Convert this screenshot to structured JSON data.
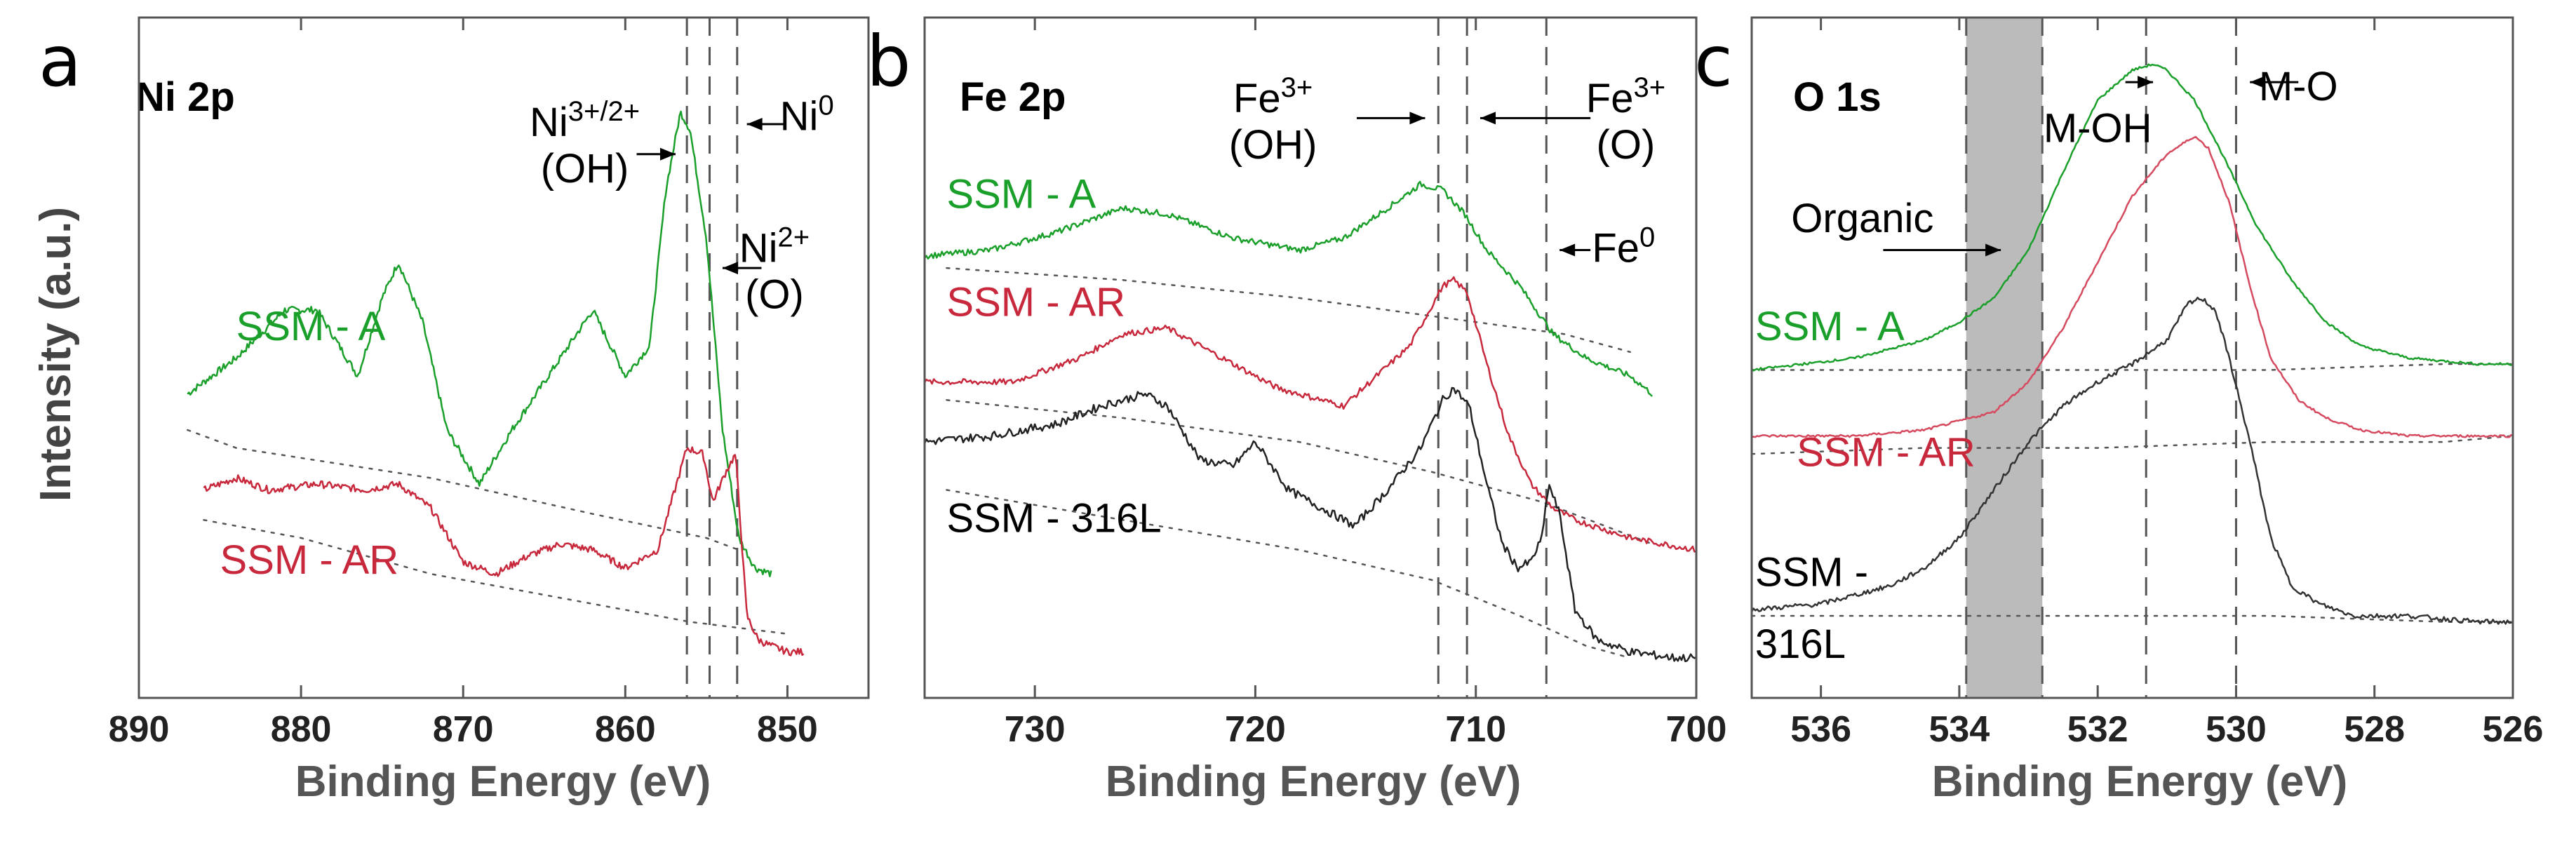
{
  "figure": {
    "ylabel": "Intensity (a.u.)"
  },
  "chart_data": [
    {
      "type": "line",
      "panel": "a",
      "title": "Ni 2p",
      "xlabel": "Binding Energy (eV)",
      "ylabel": "Intensity (a.u.)",
      "xlim": [
        890,
        845
      ],
      "ylim": [
        0,
        1
      ],
      "x_reversed": true,
      "xticks": [
        890,
        880,
        870,
        860,
        850
      ],
      "xtick_labels": [
        "890",
        "880",
        "870",
        "860",
        "850"
      ],
      "grid": false,
      "series": [
        {
          "name": "SSM - A",
          "color": "#1aa02a",
          "noise": 0.006,
          "x": [
            887,
            884,
            881,
            879,
            876.5,
            875,
            874,
            872.5,
            871,
            869,
            867,
            864,
            862,
            860,
            858.5,
            857.5,
            856.6,
            856,
            855,
            854,
            853,
            852,
            851
          ],
          "y": [
            0.46,
            0.52,
            0.6,
            0.6,
            0.49,
            0.62,
            0.68,
            0.58,
            0.4,
            0.31,
            0.4,
            0.52,
            0.6,
            0.49,
            0.54,
            0.8,
            0.93,
            0.9,
            0.72,
            0.4,
            0.22,
            0.17,
            0.16
          ]
        },
        {
          "name": "SSM - AR",
          "color": "#c8283c",
          "noise": 0.006,
          "x": [
            886,
            884,
            882,
            879,
            876,
            874,
            872,
            870,
            868,
            866,
            864,
            862,
            860,
            858,
            856.2,
            855.2,
            854.6,
            853.8,
            853.2,
            852.5,
            851.8,
            851,
            850,
            849
          ],
          "y": [
            0.3,
            0.32,
            0.3,
            0.31,
            0.3,
            0.31,
            0.27,
            0.18,
            0.16,
            0.19,
            0.21,
            0.2,
            0.17,
            0.2,
            0.37,
            0.36,
            0.28,
            0.33,
            0.36,
            0.09,
            0.05,
            0.04,
            0.03,
            0.03
          ]
        }
      ],
      "baselines": [
        {
          "x": [
            887,
            884,
            872,
            862,
            855,
            853
          ],
          "y": [
            0.4,
            0.37,
            0.32,
            0.26,
            0.22,
            0.2
          ]
        },
        {
          "x": [
            886,
            880,
            872,
            864,
            856,
            850
          ],
          "y": [
            0.25,
            0.22,
            0.16,
            0.12,
            0.08,
            0.06
          ]
        }
      ],
      "series_labels": [
        {
          "text": "SSM - A",
          "color": "#1aa02a",
          "x": 884,
          "y": 0.55
        },
        {
          "text": "SSM - AR",
          "color": "#c8283c",
          "x": 885,
          "y": 0.16
        }
      ],
      "vlines": [
        856.2,
        854.8,
        853.1
      ],
      "annotations": [
        {
          "base": "Ni",
          "sup": "3+/2+",
          "line2": "(OH)",
          "label_x": 862.5,
          "label_y": 0.89,
          "arrow_from_x": 859.3,
          "arrow_to_x": 856.9,
          "arrow_y": 0.86
        },
        {
          "base": "Ni",
          "sup": "2+",
          "line2": "(O)",
          "label_x": 850.8,
          "label_y": 0.68,
          "arrow_from_x": 851.6,
          "arrow_to_x": 854.0,
          "arrow_y": 0.67
        },
        {
          "base": "Ni",
          "sup": "0",
          "line2": "",
          "label_x": 848.8,
          "label_y": 0.9,
          "arrow_from_x": 850.1,
          "arrow_to_x": 852.5,
          "arrow_y": 0.91
        }
      ]
    },
    {
      "type": "line",
      "panel": "b",
      "title": "Fe 2p",
      "xlabel": "Binding Energy (eV)",
      "ylabel": "Intensity (a.u.)",
      "xlim": [
        735,
        700
      ],
      "ylim": [
        0,
        1
      ],
      "x_reversed": true,
      "xticks": [
        730,
        720,
        710,
        700
      ],
      "xtick_labels": [
        "730",
        "720",
        "710",
        "700"
      ],
      "grid": false,
      "series": [
        {
          "name": "SSM - A",
          "color": "#1aa02a",
          "noise": 0.005,
          "x": [
            735,
            732,
            729,
            726,
            724,
            721,
            718,
            716,
            714,
            712.5,
            711.5,
            710.5,
            709.5,
            708,
            706.5,
            705,
            703,
            702
          ],
          "y": [
            0.69,
            0.7,
            0.73,
            0.77,
            0.76,
            0.72,
            0.7,
            0.72,
            0.77,
            0.81,
            0.8,
            0.76,
            0.7,
            0.64,
            0.56,
            0.52,
            0.49,
            0.46
          ]
        },
        {
          "name": "SSM - AR",
          "color": "#c8283c",
          "noise": 0.005,
          "x": [
            735,
            731,
            728,
            726,
            724,
            722,
            719,
            716,
            713,
            711.5,
            711,
            710.4,
            709.5,
            708.5,
            707.5,
            706.5,
            705.5,
            703,
            700
          ],
          "y": [
            0.48,
            0.48,
            0.52,
            0.56,
            0.57,
            0.53,
            0.47,
            0.44,
            0.54,
            0.64,
            0.65,
            0.63,
            0.51,
            0.39,
            0.31,
            0.27,
            0.25,
            0.22,
            0.2
          ]
        },
        {
          "name": "SSM - 316L",
          "color": "#222222",
          "noise": 0.007,
          "x": [
            735,
            732,
            729,
            727,
            725,
            724,
            722.5,
            721,
            720,
            718.5,
            717,
            715.5,
            714,
            712.5,
            711.5,
            711,
            710.3,
            709.5,
            708.8,
            708.1,
            707.5,
            707,
            706.7,
            706.2,
            705.5,
            704.5,
            703,
            701,
            700
          ],
          "y": [
            0.38,
            0.39,
            0.41,
            0.44,
            0.46,
            0.44,
            0.35,
            0.34,
            0.38,
            0.3,
            0.27,
            0.24,
            0.3,
            0.37,
            0.45,
            0.47,
            0.44,
            0.31,
            0.21,
            0.17,
            0.18,
            0.22,
            0.31,
            0.26,
            0.1,
            0.05,
            0.03,
            0.02,
            0.02
          ]
        }
      ],
      "baselines": [
        {
          "x": [
            734,
            726,
            718,
            712,
            706,
            703
          ],
          "y": [
            0.67,
            0.65,
            0.62,
            0.59,
            0.56,
            0.53
          ]
        },
        {
          "x": [
            734,
            726,
            718,
            712,
            707,
            702
          ],
          "y": [
            0.45,
            0.42,
            0.38,
            0.33,
            0.28,
            0.21
          ]
        },
        {
          "x": [
            734,
            726,
            718,
            712,
            708,
            705,
            703
          ],
          "y": [
            0.3,
            0.25,
            0.2,
            0.15,
            0.09,
            0.04,
            0.02
          ]
        }
      ],
      "series_labels": [
        {
          "text": "SSM - A",
          "color": "#1aa02a",
          "x": 734,
          "y": 0.77
        },
        {
          "text": "SSM - AR",
          "color": "#c8283c",
          "x": 734,
          "y": 0.59
        },
        {
          "text": "SSM - 316L",
          "color": "#000000",
          "x": 734,
          "y": 0.23
        }
      ],
      "vlines": [
        711.7,
        710.4,
        706.8
      ],
      "annotations": [
        {
          "base": "Fe",
          "sup": "3+",
          "line2": "(OH)",
          "label_x": 719.2,
          "label_y": 0.93,
          "arrow_from_x": 715.4,
          "arrow_to_x": 712.3,
          "arrow_y": 0.92
        },
        {
          "base": "Fe",
          "sup": "3+",
          "line2": "(O)",
          "label_x": 703.2,
          "label_y": 0.93,
          "arrow_from_x": 704.8,
          "arrow_to_x": 709.8,
          "arrow_y": 0.92
        },
        {
          "base": "Fe",
          "sup": "0",
          "line2": "",
          "label_x": 703.3,
          "label_y": 0.68,
          "arrow_from_x": 704.8,
          "arrow_to_x": 706.2,
          "arrow_y": 0.7
        }
      ]
    },
    {
      "type": "line",
      "panel": "c",
      "title": "O 1s",
      "xlabel": "Binding Energy (eV)",
      "ylabel": "Intensity (a.u.)",
      "xlim": [
        537,
        526
      ],
      "ylim": [
        0,
        1
      ],
      "x_reversed": true,
      "xticks": [
        536,
        534,
        532,
        530,
        528,
        526
      ],
      "xtick_labels": [
        "536",
        "534",
        "532",
        "530",
        "528",
        "526"
      ],
      "grid": false,
      "series": [
        {
          "name": "SSM - A",
          "color": "#1aa02a",
          "noise": 0.002,
          "x": [
            537,
            535.5,
            534.5,
            534,
            533.5,
            533,
            532.5,
            532,
            531.5,
            531.2,
            531,
            530.6,
            530.2,
            529.7,
            529.2,
            528.7,
            528.2,
            527.5,
            526.5,
            526
          ],
          "y": [
            0.5,
            0.52,
            0.55,
            0.58,
            0.62,
            0.7,
            0.83,
            0.95,
            1.0,
            1.01,
            1.0,
            0.95,
            0.86,
            0.74,
            0.65,
            0.58,
            0.54,
            0.52,
            0.51,
            0.51
          ]
        },
        {
          "name": "SSM - AR",
          "color": "#d64a5f",
          "noise": 0.002,
          "x": [
            537,
            535.5,
            534.5,
            533.5,
            533,
            532.5,
            532,
            531.5,
            531,
            530.6,
            530.4,
            530.1,
            529.8,
            529.5,
            529.1,
            528.7,
            528.2,
            527.5,
            526
          ],
          "y": [
            0.39,
            0.39,
            0.4,
            0.43,
            0.48,
            0.57,
            0.68,
            0.79,
            0.86,
            0.89,
            0.87,
            0.78,
            0.64,
            0.52,
            0.45,
            0.42,
            0.4,
            0.39,
            0.39
          ]
        },
        {
          "name": "SSM - 316L",
          "color": "#333333",
          "noise": 0.004,
          "x": [
            537,
            536,
            535,
            534.5,
            534,
            533.5,
            533,
            532.5,
            532,
            531.5,
            531,
            530.7,
            530.5,
            530.3,
            530.1,
            529.8,
            529.5,
            529.2,
            528.8,
            528.3,
            527.5,
            526.5,
            526
          ],
          "y": [
            0.1,
            0.11,
            0.14,
            0.17,
            0.22,
            0.3,
            0.38,
            0.44,
            0.48,
            0.51,
            0.55,
            0.61,
            0.62,
            0.6,
            0.52,
            0.38,
            0.22,
            0.14,
            0.11,
            0.09,
            0.09,
            0.08,
            0.08
          ]
        }
      ],
      "baselines": [
        {
          "x": [
            537,
            534.5,
            532,
            529.5,
            527,
            526
          ],
          "y": [
            0.5,
            0.5,
            0.5,
            0.5,
            0.51,
            0.51
          ]
        },
        {
          "x": [
            537,
            534.5,
            532,
            529.5,
            527,
            526
          ],
          "y": [
            0.36,
            0.37,
            0.37,
            0.38,
            0.38,
            0.39
          ]
        },
        {
          "x": [
            537,
            534.5,
            532,
            529.5,
            527,
            526
          ],
          "y": [
            0.09,
            0.09,
            0.09,
            0.09,
            0.08,
            0.08
          ]
        }
      ],
      "series_labels": [
        {
          "text": "SSM - A",
          "color": "#1aa02a",
          "x": 536.95,
          "y": 0.55
        },
        {
          "text": "SSM - AR",
          "color": "#c8283c",
          "x": 536.35,
          "y": 0.34
        },
        {
          "text": "SSM -",
          "color": "#000000",
          "x": 536.95,
          "y": 0.14
        },
        {
          "text": "316L",
          "color": "#000000",
          "x": 536.95,
          "y": 0.02
        }
      ],
      "shaded_band": {
        "x_from": 533.9,
        "x_to": 532.8,
        "color": "#bbbbbb"
      },
      "vlines": [
        533.9,
        532.8,
        531.3,
        530.0
      ],
      "annotations": [
        {
          "base": "Organic",
          "sup": "",
          "line2": "",
          "label_x": 535.4,
          "label_y": 0.73,
          "arrow_from_x": 535.1,
          "arrow_to_x": 533.4,
          "arrow_y": 0.7
        },
        {
          "base": "M-OH",
          "sup": "",
          "line2": "",
          "label_x": 532.0,
          "label_y": 0.88,
          "arrow_from_x": 531.6,
          "arrow_to_x": 531.2,
          "arrow_y": 0.98
        },
        {
          "base": "M-O",
          "sup": "",
          "line2": "",
          "label_x": 529.1,
          "label_y": 0.95,
          "arrow_from_x": 529.1,
          "arrow_to_x": 529.8,
          "arrow_y": 0.98
        }
      ]
    }
  ]
}
